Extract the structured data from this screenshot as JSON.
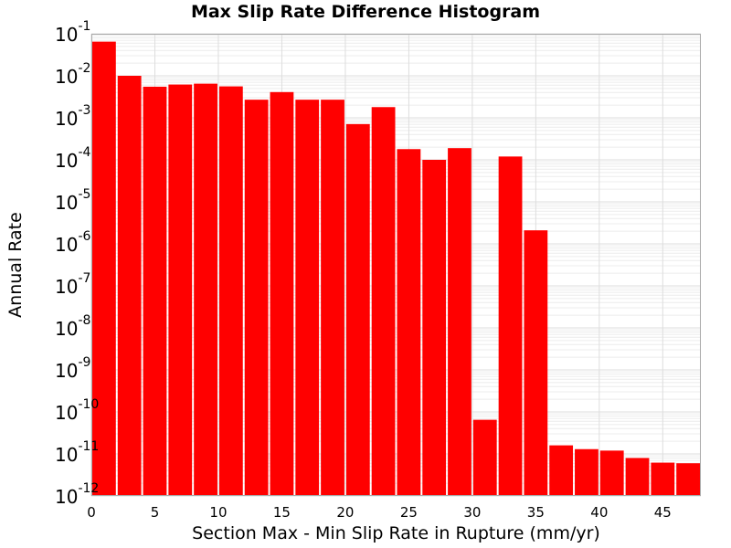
{
  "chart_data": {
    "type": "bar",
    "title": "Max Slip Rate Difference Histogram",
    "xlabel": "Section Max - Min Slip Rate in Rupture (mm/yr)",
    "ylabel": "Annual Rate",
    "x_scale": "linear",
    "y_scale": "log",
    "xlim": [
      0,
      48
    ],
    "ylim": [
      1e-12,
      0.1
    ],
    "grid": true,
    "bar_color": "#ff0000",
    "x_ticks": [
      "0",
      "5",
      "10",
      "15",
      "20",
      "25",
      "30",
      "35",
      "40",
      "45"
    ],
    "y_ticks": [
      {
        "base": "10",
        "exp": "-1"
      },
      {
        "base": "10",
        "exp": "-2"
      },
      {
        "base": "10",
        "exp": "-3"
      },
      {
        "base": "10",
        "exp": "-4"
      },
      {
        "base": "10",
        "exp": "-5"
      },
      {
        "base": "10",
        "exp": "-6"
      },
      {
        "base": "10",
        "exp": "-7"
      },
      {
        "base": "10",
        "exp": "-8"
      },
      {
        "base": "10",
        "exp": "-9"
      },
      {
        "base": "10",
        "exp": "-10"
      },
      {
        "base": "10",
        "exp": "-11"
      },
      {
        "base": "10",
        "exp": "-12"
      }
    ],
    "bin_width": 2,
    "x": [
      1,
      3,
      5,
      7,
      9,
      11,
      13,
      15,
      17,
      19,
      21,
      23,
      25,
      27,
      29,
      31,
      33,
      35,
      37,
      39,
      41,
      43,
      45,
      47
    ],
    "values": [
      0.065,
      0.01,
      0.0055,
      0.0062,
      0.0065,
      0.0056,
      0.0027,
      0.0041,
      0.0027,
      0.0027,
      0.00071,
      0.0018,
      0.00018,
      0.0001,
      0.00019,
      6.5e-11,
      0.00012,
      2.1e-06,
      1.6e-11,
      1.3e-11,
      1.2e-11,
      8e-12,
      6.2e-12,
      6e-12
    ]
  }
}
